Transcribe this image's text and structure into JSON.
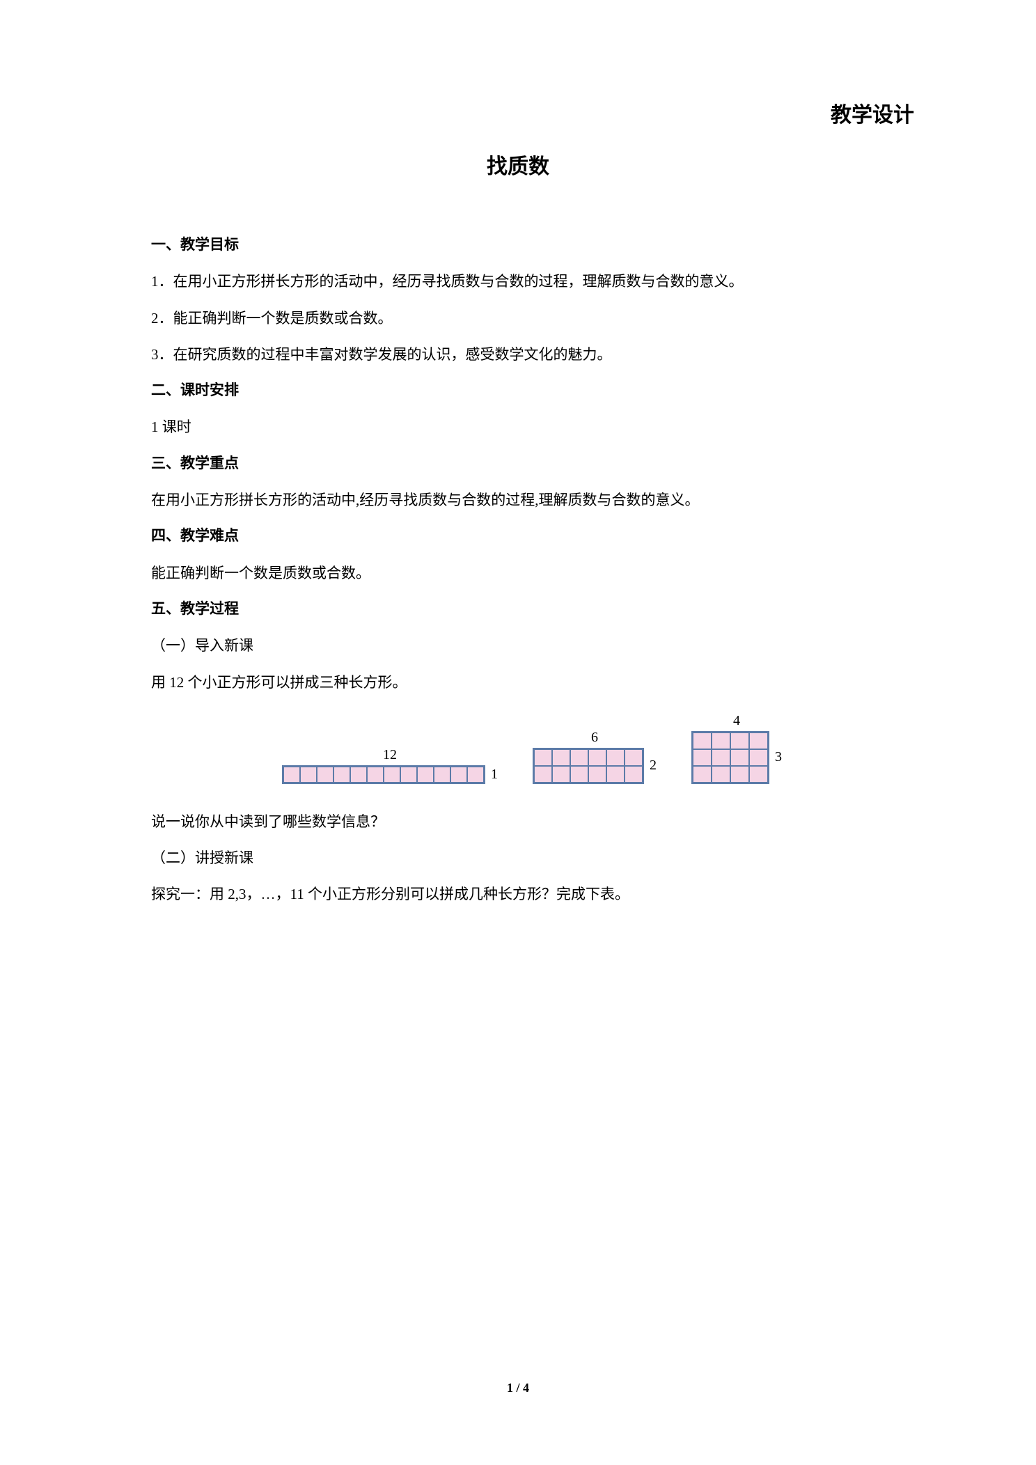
{
  "header": {
    "topRight": "教学设计",
    "mainTitle": "找质数"
  },
  "sections": {
    "s1": {
      "heading": "一、教学目标",
      "item1": "1．在用小正方形拼长方形的活动中，经历寻找质数与合数的过程，理解质数与合数的意义。",
      "item2": "2．能正确判断一个数是质数或合数。",
      "item3": "3．在研究质数的过程中丰富对数学发展的认识，感受数学文化的魅力。"
    },
    "s2": {
      "heading": "二、课时安排",
      "text": "1 课时"
    },
    "s3": {
      "heading": "三、教学重点",
      "text": "在用小正方形拼长方形的活动中,经历寻找质数与合数的过程,理解质数与合数的意义。"
    },
    "s4": {
      "heading": "四、教学难点",
      "text": "能正确判断一个数是质数或合数。"
    },
    "s5": {
      "heading": "五、教学过程",
      "sub1": "（一）导入新课",
      "text1": "用 12 个小正方形可以拼成三种长方形。",
      "text2": "说一说你从中读到了哪些数学信息？",
      "sub2": "（二）讲授新课",
      "text3": "探究一：用 2,3，…，11 个小正方形分别可以拼成几种长方形？完成下表。"
    }
  },
  "diagram": {
    "rect1": {
      "topLabel": "12",
      "sideLabel": "1",
      "cols": 12,
      "rows": 1
    },
    "rect2": {
      "topLabel": "6",
      "sideLabel": "2",
      "cols": 6,
      "rows": 2
    },
    "rect3": {
      "topLabel": "4",
      "sideLabel": "3",
      "cols": 4,
      "rows": 3
    },
    "cellFill": "#f5d5e5",
    "cellBorder": "#5c7ba8"
  },
  "footer": {
    "pageNumber": "1 / 4"
  }
}
